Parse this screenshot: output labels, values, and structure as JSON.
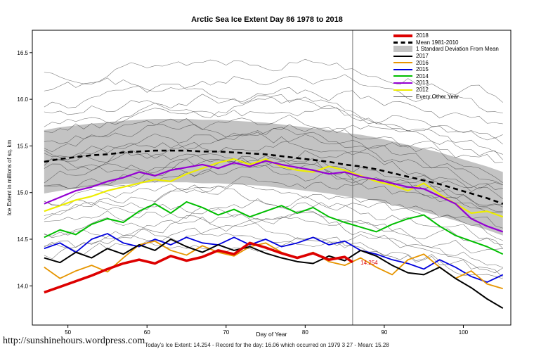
{
  "footer": {
    "url": "http://sunshinehours.wordpress.com",
    "summary": "Today's Ice Extent: 14.254  -  Record for the day: 16.06 which occurred on 1979 3 27  -  Mean: 15.28"
  },
  "chart_data": {
    "type": "line",
    "title": "Arctic Sea Ice Extent Day 86 1978 to 2018",
    "xlabel": "Day of Year",
    "ylabel": "Ice Extent in millions of sq. km",
    "xlim": [
      45.5,
      106
    ],
    "ylim": [
      13.58,
      16.74
    ],
    "xticks": [
      50,
      60,
      70,
      80,
      90,
      100
    ],
    "yticks": [
      14.0,
      14.5,
      15.0,
      15.5,
      16.0,
      16.5
    ],
    "grid": false,
    "legend_position": "top-right",
    "marker_day": 86,
    "annotation": {
      "text": "14.254",
      "x": 87,
      "y": 14.23,
      "color": "#DD0000"
    },
    "days": [
      47,
      49,
      51,
      53,
      55,
      57,
      59,
      61,
      63,
      65,
      67,
      69,
      71,
      73,
      75,
      77,
      79,
      81,
      83,
      85,
      87,
      89,
      91,
      93,
      95,
      97,
      99,
      101,
      103,
      105
    ],
    "mean_series": {
      "name": "Mean 1981-2010",
      "color": "#000000",
      "dashed": true,
      "values": [
        15.33,
        15.36,
        15.38,
        15.4,
        15.41,
        15.43,
        15.44,
        15.45,
        15.45,
        15.45,
        15.44,
        15.44,
        15.43,
        15.42,
        15.41,
        15.39,
        15.37,
        15.35,
        15.33,
        15.3,
        15.28,
        15.25,
        15.21,
        15.17,
        15.13,
        15.09,
        15.04,
        14.99,
        14.94,
        14.88
      ]
    },
    "band": {
      "name": "1 Standard Deviation From Mean",
      "color": "#C3C3C3",
      "std": 0.34
    },
    "series": [
      {
        "name": "2012",
        "color": "#EDED00",
        "width": 2.2,
        "values": [
          14.8,
          14.86,
          14.92,
          14.96,
          15.02,
          15.06,
          15.1,
          15.14,
          15.12,
          15.2,
          15.26,
          15.32,
          15.36,
          15.3,
          15.36,
          15.28,
          15.24,
          15.22,
          15.28,
          15.24,
          15.18,
          15.12,
          15.08,
          15.02,
          15.1,
          14.98,
          14.88,
          14.78,
          14.8,
          14.74
        ]
      },
      {
        "name": "2013",
        "color": "#9400D3",
        "width": 2.2,
        "values": [
          14.88,
          14.95,
          15.02,
          15.06,
          15.12,
          15.16,
          15.22,
          15.18,
          15.24,
          15.27,
          15.3,
          15.26,
          15.32,
          15.28,
          15.34,
          15.3,
          15.27,
          15.24,
          15.2,
          15.22,
          15.17,
          15.14,
          15.1,
          15.06,
          15.04,
          14.96,
          14.88,
          14.72,
          14.64,
          14.58
        ]
      },
      {
        "name": "2014",
        "color": "#00BE00",
        "width": 2.0,
        "values": [
          14.52,
          14.6,
          14.55,
          14.66,
          14.72,
          14.68,
          14.8,
          14.88,
          14.78,
          14.9,
          14.84,
          14.76,
          14.82,
          14.74,
          14.8,
          14.86,
          14.78,
          14.84,
          14.74,
          14.68,
          14.63,
          14.58,
          14.66,
          14.72,
          14.76,
          14.64,
          14.54,
          14.48,
          14.42,
          14.34
        ]
      },
      {
        "name": "2015",
        "color": "#0000DD",
        "width": 1.8,
        "values": [
          14.4,
          14.46,
          14.36,
          14.5,
          14.56,
          14.46,
          14.42,
          14.5,
          14.44,
          14.52,
          14.46,
          14.44,
          14.52,
          14.44,
          14.5,
          14.42,
          14.46,
          14.52,
          14.44,
          14.48,
          14.38,
          14.34,
          14.28,
          14.24,
          14.18,
          14.28,
          14.2,
          14.1,
          14.04,
          14.12
        ]
      },
      {
        "name": "2016",
        "color": "#E69500",
        "width": 1.8,
        "values": [
          14.2,
          14.08,
          14.16,
          14.22,
          14.15,
          14.3,
          14.44,
          14.48,
          14.38,
          14.33,
          14.43,
          14.36,
          14.32,
          14.42,
          14.46,
          14.36,
          14.3,
          14.36,
          14.26,
          14.22,
          14.3,
          14.2,
          14.12,
          14.28,
          14.34,
          14.2,
          14.08,
          14.16,
          14.02,
          13.97
        ]
      },
      {
        "name": "2017",
        "color": "#000000",
        "width": 2.0,
        "values": [
          14.3,
          14.25,
          14.36,
          14.3,
          14.4,
          14.34,
          14.44,
          14.38,
          14.5,
          14.42,
          14.36,
          14.44,
          14.38,
          14.42,
          14.35,
          14.3,
          14.26,
          14.24,
          14.32,
          14.27,
          14.38,
          14.32,
          14.22,
          14.14,
          14.12,
          14.2,
          14.08,
          13.98,
          13.86,
          13.76
        ]
      },
      {
        "name": "2018",
        "color": "#DD0000",
        "width": 3.6,
        "days": [
          47,
          49,
          51,
          53,
          55,
          57,
          59,
          61,
          63,
          65,
          67,
          69,
          71,
          73,
          75,
          77,
          79,
          81,
          83,
          85,
          86
        ],
        "values": [
          13.93,
          13.99,
          14.05,
          14.11,
          14.18,
          14.24,
          14.28,
          14.24,
          14.32,
          14.27,
          14.31,
          14.38,
          14.34,
          14.46,
          14.41,
          14.35,
          14.3,
          14.35,
          14.28,
          14.31,
          14.254
        ]
      }
    ],
    "background": {
      "name": "Every Other Year",
      "color": "#3f3f3f",
      "bases": [
        16.3,
        16.1,
        15.95,
        15.85,
        15.78,
        15.7,
        15.62,
        15.55,
        15.48,
        15.42,
        15.36,
        15.3,
        15.24,
        15.18,
        15.12,
        15.05,
        14.98,
        14.9,
        14.82,
        14.75,
        14.68,
        14.6,
        14.52,
        14.45,
        14.4,
        14.35
      ]
    },
    "legend": [
      {
        "label": "2018",
        "type": "line",
        "color": "#DD0000",
        "weight": 4
      },
      {
        "label": "Mean 1981-2010",
        "type": "dashed",
        "color": "#000000",
        "weight": 3
      },
      {
        "label": "1 Standard Deviation From Mean",
        "type": "box",
        "color": "#C3C3C3"
      },
      {
        "label": "2017",
        "type": "line",
        "color": "#000000",
        "weight": 2
      },
      {
        "label": "2016",
        "type": "line",
        "color": "#E69500",
        "weight": 2
      },
      {
        "label": "2015",
        "type": "line",
        "color": "#0000DD",
        "weight": 2
      },
      {
        "label": "2014",
        "type": "line",
        "color": "#00BE00",
        "weight": 2
      },
      {
        "label": "2013",
        "type": "line",
        "color": "#9400D3",
        "weight": 2
      },
      {
        "label": "2012",
        "type": "line",
        "color": "#EDED00",
        "weight": 2
      },
      {
        "label": "Every Other Year",
        "type": "line",
        "color": "#666666",
        "weight": 1
      }
    ]
  }
}
